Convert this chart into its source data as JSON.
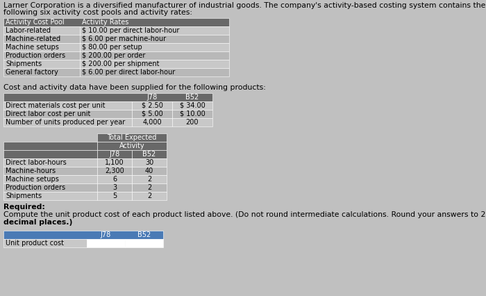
{
  "title_line1": "Larner Corporation is a diversified manufacturer of industrial goods. The company's activity-based costing system contains the",
  "title_line2": "following six activity cost pools and activity rates:",
  "activity_cost_pool_header": "Activity Cost Pool",
  "activity_rates_header": "Activity Rates",
  "activity_pools": [
    "Labor-related",
    "Machine-related",
    "Machine setups",
    "Production orders",
    "Shipments",
    "General factory"
  ],
  "activity_rates": [
    "$ 10.00 per direct labor-hour",
    "$ 6.00 per machine-hour",
    "$ 80.00 per setup",
    "$ 200.00 per order",
    "$ 200.00 per shipment",
    "$ 6.00 per direct labor-hour"
  ],
  "cost_activity_text": "Cost and activity data have been supplied for the following products:",
  "product_table_j78": "J78",
  "product_table_b52": "B52",
  "product_rows": [
    [
      "Direct materials cost per unit",
      "$ 2.50",
      "$ 34.00"
    ],
    [
      "Direct labor cost per unit",
      "$ 5.00",
      "$ 10.00"
    ],
    [
      "Number of units produced per year",
      "4,000",
      "200"
    ]
  ],
  "activity_header_main": "Total Expected",
  "activity_header_sub": "Activity",
  "activity_cols": [
    "J78",
    "B52"
  ],
  "activity_rows": [
    [
      "Direct labor-hours",
      "1,100",
      "30"
    ],
    [
      "Machine-hours",
      "2,300",
      "40"
    ],
    [
      "Machine setups",
      "6",
      "2"
    ],
    [
      "Production orders",
      "3",
      "2"
    ],
    [
      "Shipments",
      "5",
      "2"
    ]
  ],
  "required_label": "Required:",
  "required_line1": "Compute the unit product cost of each product listed above. (Do not round intermediate calculations. Round your answers to 2",
  "required_line2": "decimal places.)",
  "result_label": "Unit product cost",
  "result_col1": "J78",
  "result_col2": "B52",
  "hdr_bg": "#686868",
  "hdr_bg_blue": "#4a7ab5",
  "row_alt1": "#c8c8c8",
  "row_alt2": "#b8b8b8",
  "white": "#ffffff",
  "black": "#000000",
  "bg_color": "#c0c0c0",
  "fs_title": 7.8,
  "fs_table": 7.0,
  "fs_req": 7.8
}
